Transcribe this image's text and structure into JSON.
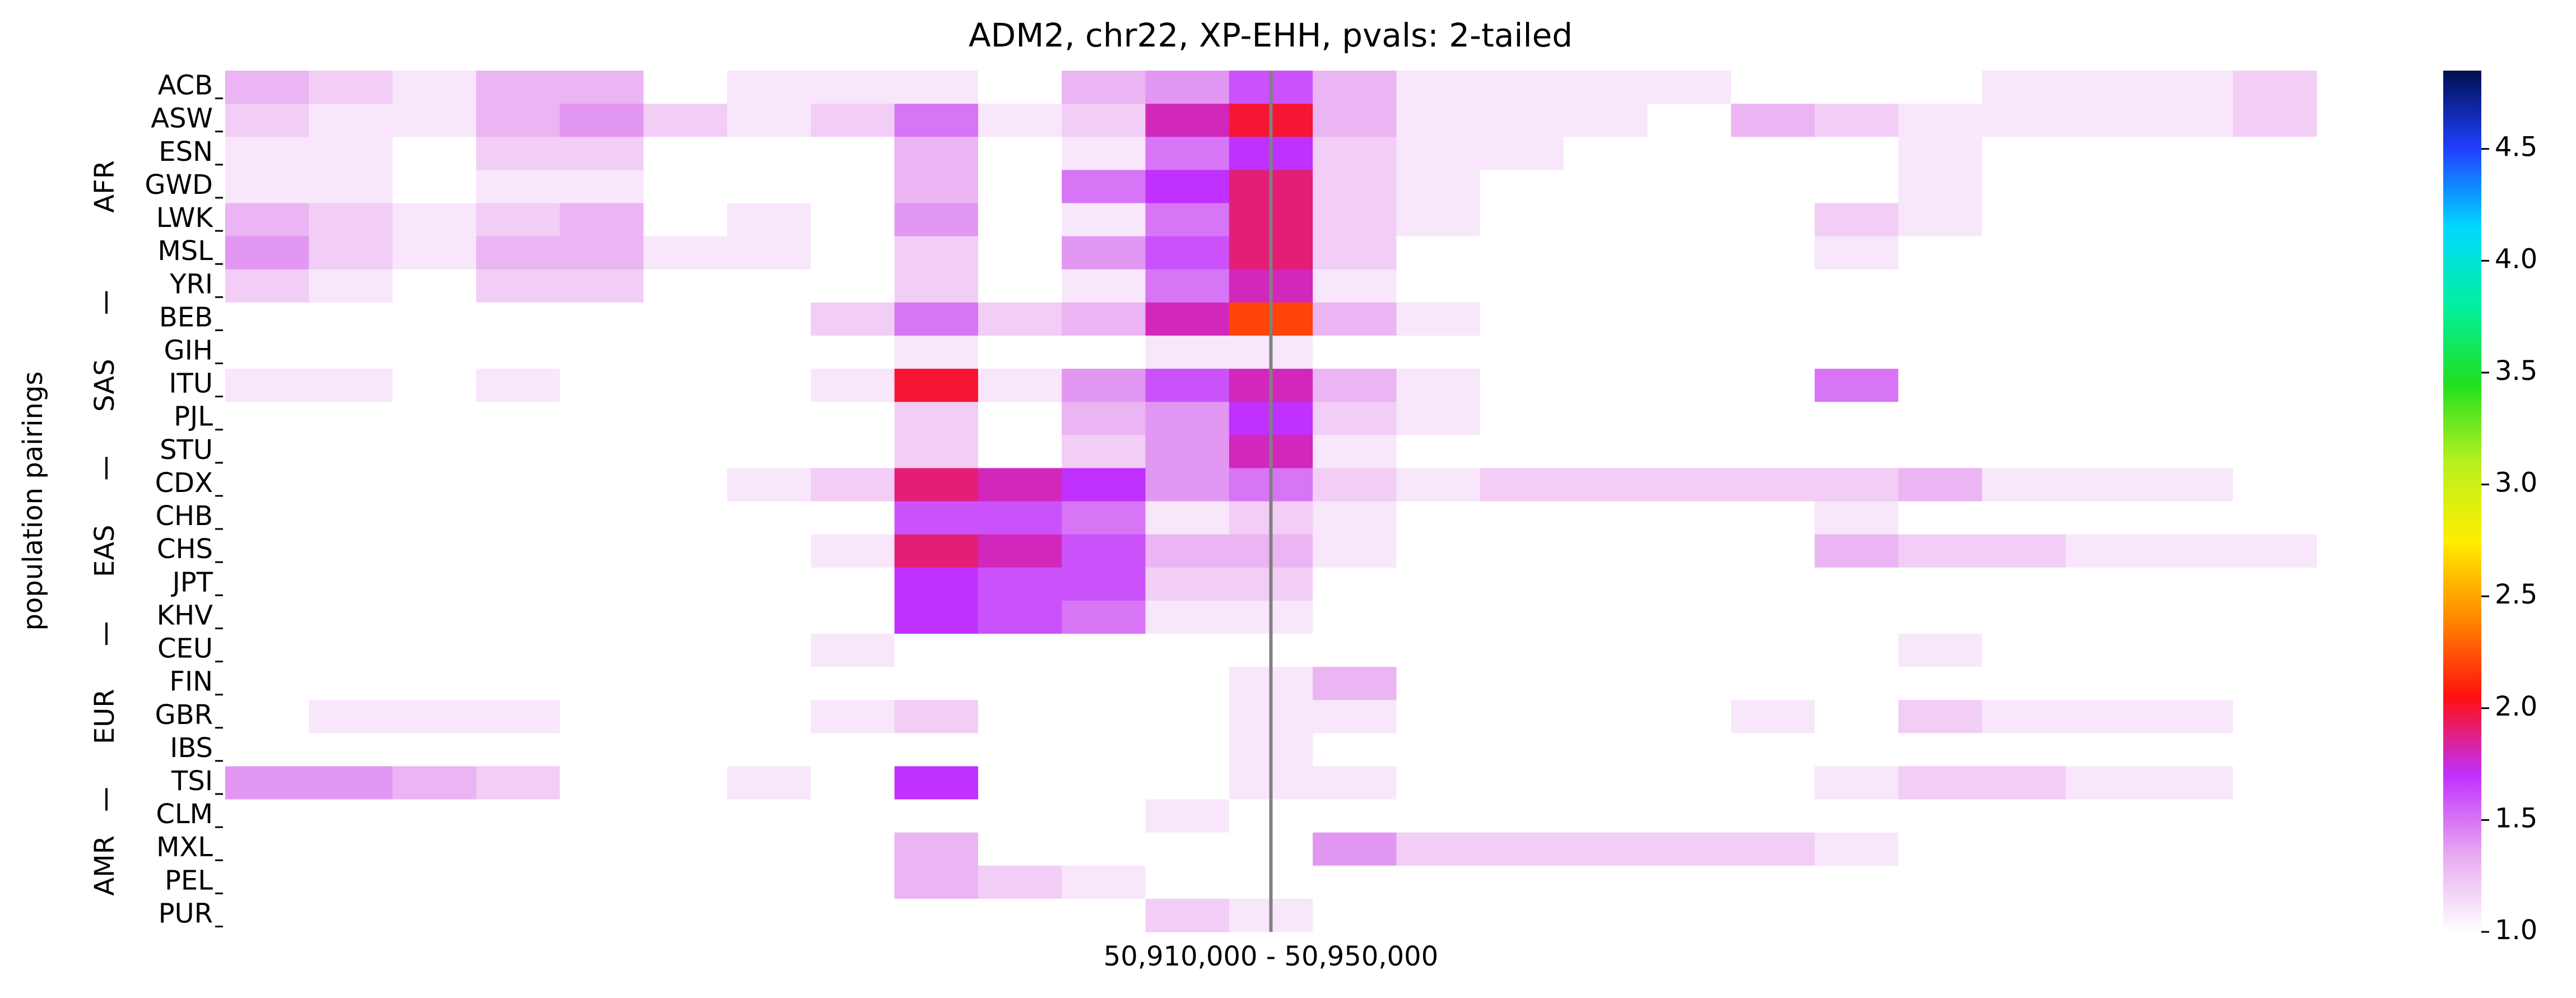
{
  "chart_data": {
    "type": "heatmap",
    "title": "ADM2, chr22, XP-EHH, pvals: 2-tailed",
    "ylabel": "population pairings",
    "row_groups": [
      {
        "name": "AFR",
        "rows": [
          "ACB",
          "ASW",
          "ESN",
          "GWD",
          "LWK",
          "MSL",
          "YRI"
        ]
      },
      {
        "name": "SAS",
        "rows": [
          "BEB",
          "GIH",
          "ITU",
          "PJL",
          "STU"
        ]
      },
      {
        "name": "EAS",
        "rows": [
          "CDX",
          "CHB",
          "CHS",
          "JPT",
          "KHV"
        ]
      },
      {
        "name": "EUR",
        "rows": [
          "CEU",
          "FIN",
          "GBR",
          "IBS",
          "TSI"
        ]
      },
      {
        "name": "AMR",
        "rows": [
          "CLM",
          "MXL",
          "PEL",
          "PUR"
        ]
      }
    ],
    "categories": [
      null,
      null,
      null,
      null,
      null,
      null,
      null,
      null,
      null,
      null,
      null,
      null,
      "50,910,000 - 50,950,000",
      null,
      null,
      null,
      null,
      null,
      null,
      null,
      null,
      null,
      null,
      null,
      null
    ],
    "marker_line_color": "#808080",
    "values": [
      [
        1.3,
        1.2,
        1.1,
        1.3,
        1.3,
        1.0,
        1.1,
        1.1,
        1.1,
        1.0,
        1.3,
        1.4,
        1.6,
        1.3,
        1.1,
        1.1,
        1.1,
        1.1,
        1.0,
        1.0,
        1.0,
        1.1,
        1.1,
        1.1,
        1.2
      ],
      [
        1.2,
        1.1,
        1.1,
        1.3,
        1.4,
        1.2,
        1.1,
        1.2,
        1.5,
        1.1,
        1.2,
        1.8,
        2.0,
        1.3,
        1.1,
        1.1,
        1.1,
        1.0,
        1.3,
        1.2,
        1.1,
        1.1,
        1.1,
        1.1,
        1.2
      ],
      [
        1.1,
        1.1,
        1.0,
        1.2,
        1.2,
        1.0,
        1.0,
        1.0,
        1.3,
        1.0,
        1.1,
        1.5,
        1.7,
        1.2,
        1.1,
        1.1,
        1.0,
        1.0,
        1.0,
        1.0,
        1.1,
        1.0,
        1.0,
        1.0,
        1.0
      ],
      [
        1.1,
        1.1,
        1.0,
        1.1,
        1.1,
        1.0,
        1.0,
        1.0,
        1.3,
        1.0,
        1.5,
        1.7,
        1.9,
        1.2,
        1.1,
        1.0,
        1.0,
        1.0,
        1.0,
        1.0,
        1.1,
        1.0,
        1.0,
        1.0,
        1.0
      ],
      [
        1.3,
        1.2,
        1.1,
        1.2,
        1.3,
        1.0,
        1.1,
        1.0,
        1.4,
        1.0,
        1.1,
        1.5,
        1.9,
        1.2,
        1.1,
        1.0,
        1.0,
        1.0,
        1.0,
        1.2,
        1.1,
        1.0,
        1.0,
        1.0,
        1.0
      ],
      [
        1.4,
        1.2,
        1.1,
        1.3,
        1.3,
        1.1,
        1.1,
        1.0,
        1.2,
        1.0,
        1.4,
        1.6,
        1.9,
        1.2,
        1.0,
        1.0,
        1.0,
        1.0,
        1.0,
        1.1,
        1.0,
        1.0,
        1.0,
        1.0,
        1.0
      ],
      [
        1.2,
        1.1,
        1.0,
        1.2,
        1.2,
        1.0,
        1.0,
        1.0,
        1.2,
        1.0,
        1.1,
        1.5,
        1.8,
        1.1,
        1.0,
        1.0,
        1.0,
        1.0,
        1.0,
        1.0,
        1.0,
        1.0,
        1.0,
        1.0,
        1.0
      ],
      [
        1.0,
        1.0,
        1.0,
        1.0,
        1.0,
        1.0,
        1.0,
        1.2,
        1.5,
        1.2,
        1.3,
        1.8,
        2.2,
        1.3,
        1.1,
        1.0,
        1.0,
        1.0,
        1.0,
        1.0,
        1.0,
        1.0,
        1.0,
        1.0,
        1.0
      ],
      [
        1.0,
        1.0,
        1.0,
        1.0,
        1.0,
        1.0,
        1.0,
        1.0,
        1.1,
        1.0,
        1.0,
        1.1,
        1.1,
        1.0,
        1.0,
        1.0,
        1.0,
        1.0,
        1.0,
        1.0,
        1.0,
        1.0,
        1.0,
        1.0,
        1.0
      ],
      [
        1.1,
        1.1,
        1.0,
        1.1,
        1.0,
        1.0,
        1.0,
        1.1,
        2.0,
        1.1,
        1.4,
        1.6,
        1.8,
        1.3,
        1.1,
        1.0,
        1.0,
        1.0,
        1.0,
        1.5,
        1.0,
        1.0,
        1.0,
        1.0,
        1.0
      ],
      [
        1.0,
        1.0,
        1.0,
        1.0,
        1.0,
        1.0,
        1.0,
        1.0,
        1.2,
        1.0,
        1.3,
        1.4,
        1.7,
        1.2,
        1.1,
        1.0,
        1.0,
        1.0,
        1.0,
        1.0,
        1.0,
        1.0,
        1.0,
        1.0,
        1.0
      ],
      [
        1.0,
        1.0,
        1.0,
        1.0,
        1.0,
        1.0,
        1.0,
        1.0,
        1.2,
        1.0,
        1.2,
        1.4,
        1.8,
        1.1,
        1.0,
        1.0,
        1.0,
        1.0,
        1.0,
        1.0,
        1.0,
        1.0,
        1.0,
        1.0,
        1.0
      ],
      [
        1.0,
        1.0,
        1.0,
        1.0,
        1.0,
        1.0,
        1.1,
        1.2,
        1.9,
        1.8,
        1.7,
        1.4,
        1.5,
        1.2,
        1.1,
        1.2,
        1.2,
        1.2,
        1.2,
        1.2,
        1.3,
        1.1,
        1.1,
        1.1,
        1.0
      ],
      [
        1.0,
        1.0,
        1.0,
        1.0,
        1.0,
        1.0,
        1.0,
        1.0,
        1.6,
        1.6,
        1.5,
        1.1,
        1.2,
        1.1,
        1.0,
        1.0,
        1.0,
        1.0,
        1.0,
        1.1,
        1.0,
        1.0,
        1.0,
        1.0,
        1.0
      ],
      [
        1.0,
        1.0,
        1.0,
        1.0,
        1.0,
        1.0,
        1.0,
        1.1,
        1.9,
        1.8,
        1.6,
        1.3,
        1.3,
        1.1,
        1.0,
        1.0,
        1.0,
        1.0,
        1.0,
        1.3,
        1.2,
        1.2,
        1.1,
        1.1,
        1.1
      ],
      [
        1.0,
        1.0,
        1.0,
        1.0,
        1.0,
        1.0,
        1.0,
        1.0,
        1.7,
        1.6,
        1.6,
        1.2,
        1.2,
        1.0,
        1.0,
        1.0,
        1.0,
        1.0,
        1.0,
        1.0,
        1.0,
        1.0,
        1.0,
        1.0,
        1.0
      ],
      [
        1.0,
        1.0,
        1.0,
        1.0,
        1.0,
        1.0,
        1.0,
        1.0,
        1.7,
        1.6,
        1.5,
        1.1,
        1.1,
        1.0,
        1.0,
        1.0,
        1.0,
        1.0,
        1.0,
        1.0,
        1.0,
        1.0,
        1.0,
        1.0,
        1.0
      ],
      [
        1.0,
        1.0,
        1.0,
        1.0,
        1.0,
        1.0,
        1.0,
        1.1,
        1.0,
        1.0,
        1.0,
        1.0,
        1.0,
        1.0,
        1.0,
        1.0,
        1.0,
        1.0,
        1.0,
        1.0,
        1.1,
        1.0,
        1.0,
        1.0,
        1.0
      ],
      [
        1.0,
        1.0,
        1.0,
        1.0,
        1.0,
        1.0,
        1.0,
        1.0,
        1.0,
        1.0,
        1.0,
        1.0,
        1.1,
        1.3,
        1.0,
        1.0,
        1.0,
        1.0,
        1.0,
        1.0,
        1.0,
        1.0,
        1.0,
        1.0,
        1.0
      ],
      [
        1.0,
        1.1,
        1.1,
        1.1,
        1.0,
        1.0,
        1.0,
        1.1,
        1.2,
        1.0,
        1.0,
        1.0,
        1.1,
        1.1,
        1.0,
        1.0,
        1.0,
        1.0,
        1.1,
        1.0,
        1.2,
        1.1,
        1.1,
        1.1,
        1.0
      ],
      [
        1.0,
        1.0,
        1.0,
        1.0,
        1.0,
        1.0,
        1.0,
        1.0,
        1.0,
        1.0,
        1.0,
        1.0,
        1.1,
        1.0,
        1.0,
        1.0,
        1.0,
        1.0,
        1.0,
        1.0,
        1.0,
        1.0,
        1.0,
        1.0,
        1.0
      ],
      [
        1.4,
        1.4,
        1.3,
        1.2,
        1.0,
        1.0,
        1.1,
        1.0,
        1.7,
        1.0,
        1.0,
        1.0,
        1.1,
        1.1,
        1.0,
        1.0,
        1.0,
        1.0,
        1.0,
        1.1,
        1.2,
        1.2,
        1.1,
        1.1,
        1.0
      ],
      [
        1.0,
        1.0,
        1.0,
        1.0,
        1.0,
        1.0,
        1.0,
        1.0,
        1.0,
        1.0,
        1.0,
        1.1,
        1.0,
        1.0,
        1.0,
        1.0,
        1.0,
        1.0,
        1.0,
        1.0,
        1.0,
        1.0,
        1.0,
        1.0,
        1.0
      ],
      [
        1.0,
        1.0,
        1.0,
        1.0,
        1.0,
        1.0,
        1.0,
        1.0,
        1.3,
        1.0,
        1.0,
        1.0,
        1.0,
        1.4,
        1.2,
        1.2,
        1.2,
        1.2,
        1.2,
        1.1,
        1.0,
        1.0,
        1.0,
        1.0,
        1.0
      ],
      [
        1.0,
        1.0,
        1.0,
        1.0,
        1.0,
        1.0,
        1.0,
        1.0,
        1.3,
        1.2,
        1.1,
        1.0,
        1.0,
        1.0,
        1.0,
        1.0,
        1.0,
        1.0,
        1.0,
        1.0,
        1.0,
        1.0,
        1.0,
        1.0,
        1.0
      ],
      [
        1.0,
        1.0,
        1.0,
        1.0,
        1.0,
        1.0,
        1.0,
        1.0,
        1.0,
        1.0,
        1.0,
        1.2,
        1.1,
        1.0,
        1.0,
        1.0,
        1.0,
        1.0,
        1.0,
        1.0,
        1.0,
        1.0,
        1.0,
        1.0,
        1.0
      ]
    ],
    "zlim": [
      1.0,
      4.85
    ],
    "zticks": [
      {
        "value": 1.0,
        "label": "1.0"
      },
      1.5,
      {
        "value": 2.0,
        "label": "2.0"
      },
      2.5,
      {
        "value": 3.0,
        "label": "3.0"
      },
      3.5,
      {
        "value": 4.0,
        "label": "4.0"
      },
      4.5
    ],
    "colormap": [
      "#ffffff",
      "#e8a8f0",
      "#c030ff",
      "#ff1010",
      "#ff8800",
      "#ffee00",
      "#b8f020",
      "#20e020",
      "#00f0a0",
      "#00d8ff",
      "#2040ff",
      "#001050"
    ]
  }
}
